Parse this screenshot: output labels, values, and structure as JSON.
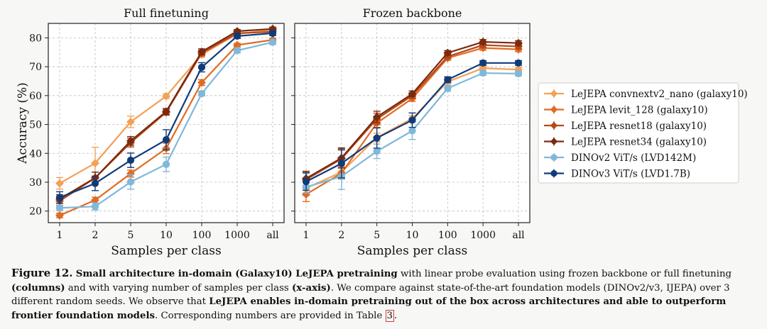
{
  "chart_data": [
    {
      "type": "line",
      "title": "Full finetuning",
      "xlabel": "Samples per class",
      "ylabel": "Accuracy (%)",
      "categories": [
        "1",
        "2",
        "5",
        "10",
        "100",
        "1000",
        "all"
      ],
      "yticks": [
        20,
        30,
        40,
        50,
        60,
        70,
        80
      ],
      "ylim": [
        16,
        85
      ],
      "grid": true,
      "series": [
        {
          "name": "LeJEPA convnextv2_nano (galaxy10)",
          "values": [
            29.6,
            36.6,
            50.9,
            59.8,
            74.2,
            81.3,
            82.8
          ],
          "err": [
            2.0,
            5.5,
            2.0,
            0.8,
            1.0,
            0.6,
            0.6
          ]
        },
        {
          "name": "LeJEPA levit_128 (galaxy10)",
          "values": [
            18.5,
            23.8,
            33.0,
            41.7,
            64.5,
            77.5,
            79.3
          ],
          "err": [
            0.8,
            1.0,
            1.2,
            1.8,
            1.0,
            0.6,
            0.6
          ]
        },
        {
          "name": "LeJEPA resnet18 (galaxy10)",
          "values": [
            23.5,
            31.5,
            43.7,
            54.2,
            74.7,
            81.6,
            82.1
          ],
          "err": [
            1.5,
            2.0,
            1.5,
            1.0,
            1.0,
            0.6,
            0.6
          ]
        },
        {
          "name": "LeJEPA resnet34 (galaxy10)",
          "values": [
            24.2,
            31.5,
            44.3,
            54.5,
            75.2,
            82.3,
            83.1
          ],
          "err": [
            1.5,
            2.0,
            1.5,
            1.0,
            1.0,
            0.6,
            0.6
          ]
        },
        {
          "name": "DINOv2 ViT/s (LVD142M)",
          "values": [
            21.1,
            21.6,
            30.1,
            36.2,
            60.7,
            75.6,
            78.5
          ],
          "err": [
            0.8,
            1.2,
            2.5,
            2.5,
            0.8,
            0.8,
            0.8
          ]
        },
        {
          "name": "DINOv3 ViT/s (LVD1.7B)",
          "values": [
            24.7,
            29.6,
            37.6,
            44.7,
            69.8,
            80.6,
            81.6
          ],
          "err": [
            2.0,
            2.5,
            2.5,
            3.5,
            1.6,
            0.8,
            0.8
          ]
        }
      ]
    },
    {
      "type": "line",
      "title": "Frozen backbone",
      "xlabel": "Samples per class",
      "ylabel": "",
      "categories": [
        "1",
        "2",
        "5",
        "10",
        "100",
        "1000",
        "all"
      ],
      "ylim": [
        16,
        85
      ],
      "grid": true,
      "series": [
        {
          "name": "LeJEPA convnextv2_nano (galaxy10)",
          "values": [
            27.9,
            33.5,
            45.5,
            52.0,
            64.8,
            69.5,
            69.0
          ],
          "err": [
            2.5,
            2.0,
            1.5,
            1.0,
            0.8,
            0.8,
            0.8
          ]
        },
        {
          "name": "LeJEPA levit_128 (galaxy10)",
          "values": [
            25.8,
            33.1,
            50.5,
            59.0,
            73.0,
            76.5,
            76.0
          ],
          "err": [
            2.5,
            2.0,
            1.5,
            1.0,
            0.8,
            0.8,
            0.8
          ]
        },
        {
          "name": "LeJEPA resnet18 (galaxy10)",
          "values": [
            30.9,
            38.1,
            51.9,
            60.0,
            73.5,
            77.5,
            77.0
          ],
          "err": [
            2.5,
            3.0,
            2.0,
            1.0,
            0.8,
            0.8,
            0.8
          ]
        },
        {
          "name": "LeJEPA resnet34 (galaxy10)",
          "values": [
            31.3,
            38.4,
            52.6,
            60.6,
            74.8,
            78.6,
            78.2
          ],
          "err": [
            2.5,
            3.5,
            2.0,
            1.0,
            0.8,
            0.8,
            0.8
          ]
        },
        {
          "name": "DINOv2 ViT/s (LVD142M)",
          "values": [
            28.3,
            32.0,
            40.7,
            47.8,
            62.5,
            67.8,
            67.6
          ],
          "err": [
            2.0,
            4.5,
            2.5,
            3.0,
            1.0,
            0.8,
            0.8
          ]
        },
        {
          "name": "DINOv3 ViT/s (LVD1.7B)",
          "values": [
            30.2,
            36.5,
            45.3,
            51.5,
            65.5,
            71.3,
            71.3
          ],
          "err": [
            3.0,
            5.0,
            3.5,
            2.5,
            1.0,
            0.8,
            0.8
          ]
        }
      ]
    }
  ],
  "legend": {
    "placement": "right",
    "colors": [
      "#f2a157",
      "#e06b22",
      "#b64818",
      "#7a2a0e",
      "#7fb8d9",
      "#103b7a"
    ]
  },
  "caption": {
    "fig_label": "Figure 12.",
    "bold1": "Small architecture in-domain (Galaxy10) LeJEPA pretraining",
    "text1": " with linear probe evaluation using frozen backbone or full finetuning ",
    "bold2": "(columns)",
    "text2": " and with varying number of samples per class ",
    "bold3": "(x-axis)",
    "text3": ". We compare against state-of-the-art foundation models (DINOv2/v3, IJEPA) over 3 different random seeds. We observe that ",
    "bold4": "LeJEPA enables in-domain pretraining out of the box across architectures and able to outperform frontier foundation models",
    "text4": ". Corresponding numbers are provided in Table ",
    "ref": "3",
    "text5": "."
  }
}
